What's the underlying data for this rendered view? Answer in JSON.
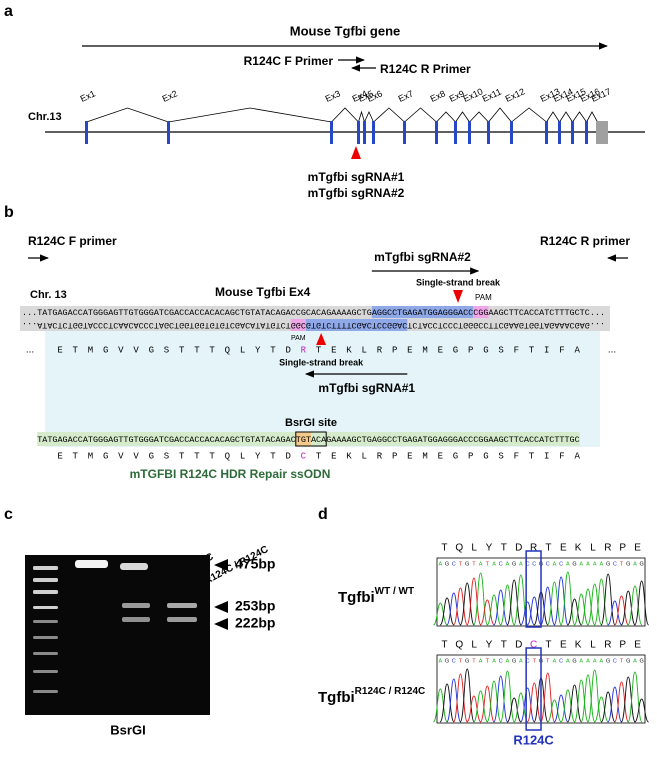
{
  "panel_a": {
    "label": "a",
    "title": "Mouse Tgfbi gene",
    "f_primer": "R124C F Primer",
    "r_primer": "R124C R Primer",
    "chromosome": "Chr.13",
    "exons": [
      "Ex1",
      "Ex2",
      "Ex3",
      "Ex4",
      "Ex5",
      "Ex6",
      "Ex7",
      "Ex8",
      "Ex9",
      "Ex10",
      "Ex11",
      "Ex12",
      "Ex13",
      "Ex14",
      "Ex15",
      "Ex16",
      "Ex17"
    ],
    "sgrnas": [
      "mTgfbi sgRNA#1",
      "mTgfbi sgRNA#2"
    ]
  },
  "panel_b": {
    "label": "b",
    "f_primer": "R124C F primer",
    "r_primer": "R124C R primer",
    "sgrna2": "mTgfbi sgRNA#2",
    "chromosome": "Chr. 13",
    "exon": "Mouse Tgfbi Ex4",
    "break_top": "Single-strand break",
    "pam_top": "PAM",
    "sense": "...TATGAGACCATGGGAGTTGTGGGATCGACCACCACACAGCTGTATACAGACCGCACAGAAAAGCTGAGGCCTGAGATGGAGGGACCCGGAAGCTTCACCATCTTTGCTC...",
    "antisense": "...ATACTCTGGTACCCTCAACACCCTAGCTGGTGGTGTGTCGACATATGTCTGGCGTGTCTTTTCGACTCCGGACTCTACCTCCCTGGGCCTTCGAAGTGGTAGAAACGAG...",
    "ellipsis": "...",
    "protein": [
      "E",
      "T",
      "M",
      "G",
      "V",
      "V",
      "G",
      "S",
      "T",
      "T",
      "T",
      "Q",
      "L",
      "Y",
      "T",
      "D",
      "R",
      "T",
      "E",
      "K",
      "L",
      "R",
      "P",
      "E",
      "M",
      "E",
      "G",
      "P",
      "G",
      "S",
      "F",
      "T",
      "I",
      "F",
      "A"
    ],
    "break_bottom": "Single-strand break",
    "sgrna1": "mTgfbi sgRNA#1",
    "pam_bottom": "PAM",
    "site": "BsrGI site",
    "ssodn": "TATGAGACCATGGGAGTTGTGGGATCGACCACCACACAGCTGTATACAGACTGTACAGAAAAGCTGAGGCCTGAGATGGAGGGACCCGGAAGCTTCACCATCTTTGC",
    "ssodn_protein": [
      "E",
      "T",
      "M",
      "G",
      "V",
      "V",
      "G",
      "S",
      "T",
      "T",
      "T",
      "Q",
      "L",
      "Y",
      "T",
      "D",
      "C",
      "T",
      "E",
      "K",
      "L",
      "R",
      "P",
      "E",
      "M",
      "E",
      "G",
      "P",
      "G",
      "S",
      "F",
      "T",
      "I",
      "F",
      "A"
    ],
    "ssodn_title": "mTGFBI R124C HDR Repair ssODN"
  },
  "panel_c": {
    "label": "c",
    "lanes": [
      {
        "gene": "Tgfbi",
        "genotype": "WT / WT"
      },
      {
        "gene": "Tgfbi",
        "genotype": "WT / R124C"
      },
      {
        "gene": "Tgfbi",
        "genotype": "R124C / R124C"
      }
    ],
    "bands": [
      "475bp",
      "253bp",
      "222bp"
    ],
    "enzyme": "BsrGI"
  },
  "panel_d": {
    "label": "d",
    "samples": [
      {
        "gene": "Tgfbi",
        "genotype": "WT / WT",
        "protein": [
          "T",
          "Q",
          "L",
          "Y",
          "T",
          "D",
          "R",
          "T",
          "E",
          "K",
          "L",
          "R",
          "P",
          "E"
        ],
        "bases": [
          "A",
          "G",
          "C",
          "T",
          "G",
          "T",
          "A",
          "T",
          "A",
          "C",
          "A",
          "G",
          "A",
          "C",
          "C",
          "G",
          "C",
          "A",
          "C",
          "A",
          "G",
          "A",
          "A",
          "A",
          "A",
          "G",
          "C",
          "T",
          "G",
          "A",
          "G"
        ]
      },
      {
        "gene": "Tgfbi",
        "genotype": "R124C / R124C",
        "protein": [
          "T",
          "Q",
          "L",
          "Y",
          "T",
          "D",
          "C",
          "T",
          "E",
          "K",
          "L",
          "R",
          "P",
          "E"
        ],
        "bases": [
          "A",
          "G",
          "C",
          "T",
          "G",
          "T",
          "A",
          "T",
          "A",
          "C",
          "A",
          "G",
          "A",
          "C",
          "T",
          "G",
          "T",
          "A",
          "C",
          "A",
          "G",
          "A",
          "A",
          "A",
          "A",
          "G",
          "C",
          "T",
          "G",
          "A",
          "G"
        ]
      }
    ],
    "mutation": "R124C"
  }
}
